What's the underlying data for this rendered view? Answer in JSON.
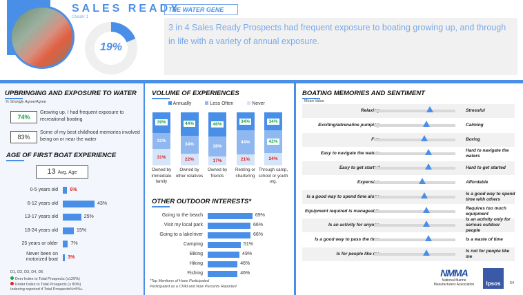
{
  "header": {
    "title": "SALES READY",
    "subtitle": "Cluster 1",
    "donut_percent": "19%",
    "donut_value": 19,
    "tag": "THE WATER GENE",
    "summary": "3 in 4 Sales Ready Prospects had frequent exposure to boating growing up, and through in life with a variety of annual exposure."
  },
  "colors": {
    "accent": "#4a8fe7",
    "under": "#e02020",
    "over": "#1aa34a"
  },
  "upbringing": {
    "title": "UPBRINGING AND EXPOSURE TO WATER",
    "note": "% Strongly Agree/Agree",
    "items": [
      {
        "value": "74%",
        "text": "Growing up, I had frequent exposure to recreational boating"
      },
      {
        "value": "83%",
        "text": "Some of my best childhood memories involved being on or near the water"
      }
    ]
  },
  "age": {
    "title": "AGE OF FIRST BOAT EXPERIENCE",
    "avg_value": "13",
    "avg_label": "Avg. Age",
    "rows": [
      {
        "label": "0-5 years old",
        "value": 6,
        "text": "6%",
        "flag": "under"
      },
      {
        "label": "6-12 years old",
        "value": 43,
        "text": "43%",
        "flag": ""
      },
      {
        "label": "13-17 years old",
        "value": 25,
        "text": "25%",
        "flag": ""
      },
      {
        "label": "18-24 years old",
        "value": 15,
        "text": "15%",
        "flag": ""
      },
      {
        "label": "25 years or older",
        "value": 7,
        "text": "7%",
        "flag": ""
      },
      {
        "label": "Never been on motorized boat",
        "value": 3,
        "text": "3%",
        "flag": "under"
      }
    ],
    "footnotes": [
      "D1, D2, D3, D4, D6",
      "Over Index to Total Prospects (≥120%)",
      "Under Index to Total Prospects (≤ 80%)",
      "Indexing reported if Total Prospects%=5%+"
    ]
  },
  "volume": {
    "title": "VOLUME OF EXPERIENCES",
    "legend": [
      "Annually",
      "Less Often",
      "Never"
    ],
    "bars": [
      {
        "label": "Owned by immediate family",
        "annually": 39,
        "less": 31,
        "never": 31,
        "a": "39%",
        "l": "31%",
        "n": "31%",
        "lg": false
      },
      {
        "label": "Owned by other relatives",
        "annually": 44,
        "less": 34,
        "never": 22,
        "a": "44%",
        "l": "34%",
        "n": "22%",
        "lg": false
      },
      {
        "label": "Owned by friends",
        "annually": 46,
        "less": 38,
        "never": 17,
        "a": "46%",
        "l": "38%",
        "n": "17%",
        "lg": false
      },
      {
        "label": "Renting or chartering",
        "annually": 34,
        "less": 44,
        "never": 21,
        "a": "34%",
        "l": "44%",
        "n": "21%",
        "lg": false
      },
      {
        "label": "Through camp, school or youth org.",
        "annually": 34,
        "less": 42,
        "never": 24,
        "a": "34%",
        "l": "42%",
        "n": "24%",
        "lg": true
      }
    ]
  },
  "outdoor": {
    "title": "OTHER OUTDOOR INTERESTS*",
    "rows": [
      {
        "label": "Going to the beach",
        "value": 69,
        "text": "69%"
      },
      {
        "label": "Visit my local park",
        "value": 66,
        "text": "66%"
      },
      {
        "label": "Going to a lake/river",
        "value": 66,
        "text": "66%"
      },
      {
        "label": "Camping",
        "value": 51,
        "text": "51%"
      },
      {
        "label": "Biking",
        "value": 49,
        "text": "49%"
      },
      {
        "label": "Hiking",
        "value": 46,
        "text": "46%"
      },
      {
        "label": "Fishing",
        "value": 46,
        "text": "46%"
      }
    ],
    "footnotes": [
      "*Top Mentions of Have Participated",
      "Participated as a Child and Now Percents Reported"
    ]
  },
  "sentiment": {
    "title": "BOATING MEMORIES AND SENTIMENT",
    "note": "Mean Value",
    "rows": [
      {
        "left": "Relaxing",
        "right": "Stressful",
        "value": 0.69
      },
      {
        "left": "Exciting/adrenaline pumping",
        "right": "Calming",
        "value": 0.64
      },
      {
        "left": "Fun",
        "right": "Boring",
        "value": 0.62
      },
      {
        "left": "Easy to navigate the waters",
        "right": "Hard to navigate the waters",
        "value": 0.67
      },
      {
        "left": "Easy to get started",
        "right": "Hard to get started",
        "value": 0.67
      },
      {
        "left": "Expensive",
        "right": "Affordable",
        "value": 0.59
      },
      {
        "left": "Is a good way to spend time alone",
        "right": "Is a good way to spend time with others",
        "value": 0.62
      },
      {
        "left": "Equipment required is manageable",
        "right": "Requires too much equipment",
        "value": 0.64
      },
      {
        "left": "Is an activity for anyone",
        "right": "Is an activity only for serious outdoor people",
        "value": 0.64
      },
      {
        "left": "Is a good way to pass the time",
        "right": "Is a waste of time",
        "value": 0.67
      },
      {
        "left": "Is for people like me",
        "right": "Is not for people like me",
        "value": 0.64
      }
    ]
  },
  "footer": {
    "nmma": "NMMA",
    "nmma_full": "National Marine Manufacturers Association",
    "ipsos": "Ipsos",
    "page": "54"
  }
}
